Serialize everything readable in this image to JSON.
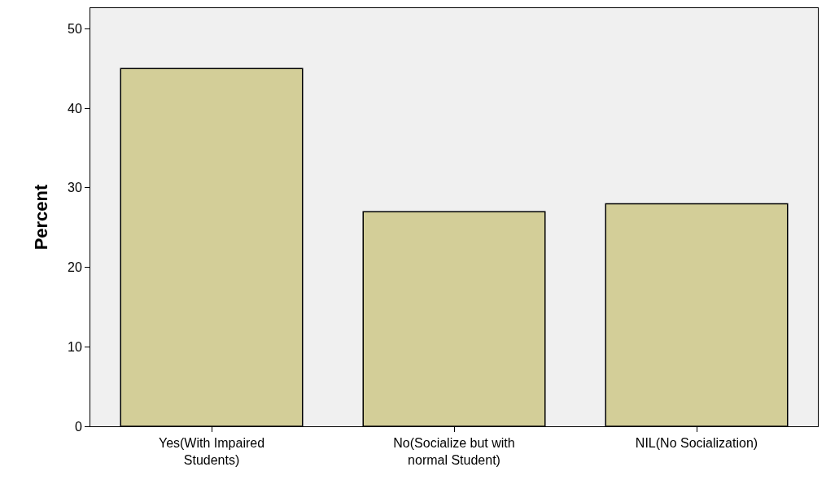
{
  "chart_data": {
    "type": "bar",
    "ylabel": "Percent",
    "categories": [
      "Yes(With Impaired\nStudents)",
      "No(Socialize but with\nnormal Student)",
      "NIL(No Socialization)"
    ],
    "values": [
      45,
      27,
      28
    ],
    "color": "#d3ce98",
    "ylim": [
      0,
      52.6
    ],
    "yticks": [
      0,
      10,
      20,
      30,
      40,
      50
    ],
    "grid": false
  }
}
